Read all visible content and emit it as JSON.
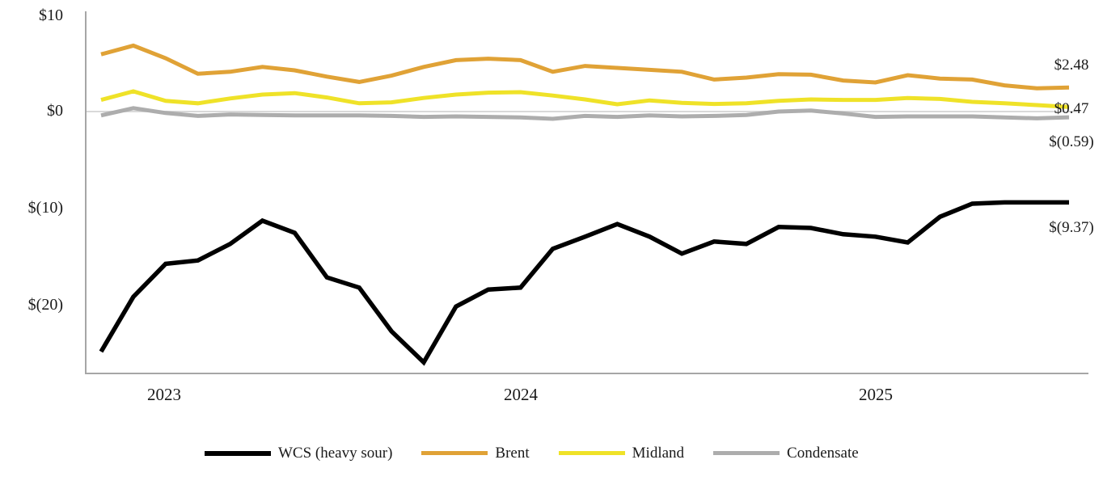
{
  "chart_data": {
    "type": "line",
    "title": "",
    "ylabel": "",
    "xlabel": "",
    "ylim": [
      -27.5,
      10.5
    ],
    "grid": "zero-line-only",
    "legend_position": "bottom",
    "x_tick_labels": [
      "2023",
      "2024",
      "2025"
    ],
    "x_tick_point_indices": [
      2,
      13,
      24
    ],
    "y_ticks": [
      {
        "label": "$10",
        "value": 10
      },
      {
        "label": "$0",
        "value": 0
      },
      {
        "label": "$(10)",
        "value": -10
      },
      {
        "label": "$(20)",
        "value": -20
      }
    ],
    "series": [
      {
        "name": "WCS (heavy sour)",
        "color": "#000000",
        "end_label": "$(9.37)",
        "end_value": -9.37,
        "values": [
          -24.75,
          -19.1,
          -15.7,
          -15.35,
          -13.65,
          -11.25,
          -12.5,
          -17.1,
          -18.15,
          -22.65,
          -25.85,
          -20.1,
          -18.35,
          -18.15,
          -14.15,
          -12.9,
          -11.6,
          -12.9,
          -14.65,
          -13.4,
          -13.65,
          -11.9,
          -12.0,
          -12.65,
          -12.9,
          -13.5,
          -10.85,
          -9.5,
          -9.37,
          -9.37,
          -9.37
        ]
      },
      {
        "name": "Brent",
        "color": "#E0A236",
        "end_label": "$2.48",
        "end_value": 2.48,
        "values": [
          5.9,
          6.8,
          5.5,
          3.9,
          4.1,
          4.6,
          4.25,
          3.6,
          3.05,
          3.7,
          4.6,
          5.3,
          5.45,
          5.3,
          4.1,
          4.7,
          4.5,
          4.3,
          4.1,
          3.3,
          3.5,
          3.85,
          3.8,
          3.2,
          3.0,
          3.75,
          3.4,
          3.3,
          2.7,
          2.4,
          2.48
        ]
      },
      {
        "name": "Midland",
        "color": "#EFE228",
        "end_label": "$0.47",
        "end_value": 0.47,
        "values": [
          1.2,
          2.08,
          1.1,
          0.85,
          1.35,
          1.75,
          1.9,
          1.45,
          0.85,
          0.95,
          1.4,
          1.75,
          1.95,
          2.0,
          1.65,
          1.25,
          0.75,
          1.15,
          0.9,
          0.78,
          0.85,
          1.1,
          1.25,
          1.2,
          1.2,
          1.4,
          1.3,
          1.0,
          0.85,
          0.67,
          0.47
        ]
      },
      {
        "name": "Condensate",
        "color": "#ADADAD",
        "end_label": "$(0.59)",
        "end_value": -0.59,
        "values": [
          -0.4,
          0.35,
          -0.15,
          -0.45,
          -0.3,
          -0.35,
          -0.4,
          -0.4,
          -0.4,
          -0.45,
          -0.55,
          -0.5,
          -0.55,
          -0.6,
          -0.75,
          -0.45,
          -0.55,
          -0.4,
          -0.5,
          -0.45,
          -0.35,
          0.0,
          0.1,
          -0.2,
          -0.55,
          -0.5,
          -0.5,
          -0.5,
          -0.6,
          -0.7,
          -0.59
        ]
      }
    ]
  }
}
